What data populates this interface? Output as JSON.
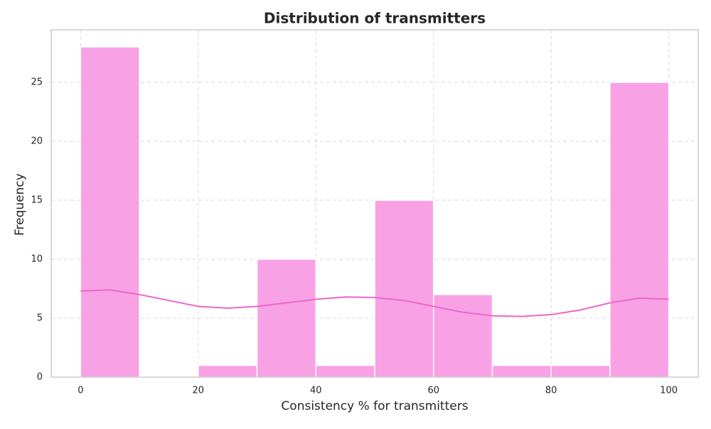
{
  "chart_data": {
    "type": "histogram",
    "title": "Distribution of transmitters",
    "xlabel": "Consistency % for transmitters",
    "ylabel": "Frequency",
    "bins": [
      0,
      10,
      20,
      30,
      40,
      50,
      60,
      70,
      80,
      90,
      100
    ],
    "counts": [
      28,
      0,
      1,
      10,
      1,
      15,
      7,
      1,
      1,
      25
    ],
    "color": "#f8a2e5",
    "kde": {
      "x": [
        0,
        5,
        10,
        15,
        20,
        25,
        30,
        35,
        40,
        45,
        50,
        55,
        60,
        65,
        70,
        75,
        80,
        85,
        90,
        95,
        100
      ],
      "values": [
        7.3,
        7.4,
        7.0,
        6.5,
        6.0,
        5.85,
        6.0,
        6.3,
        6.6,
        6.8,
        6.75,
        6.5,
        6.0,
        5.5,
        5.2,
        5.15,
        5.3,
        5.7,
        6.3,
        6.7,
        6.6
      ],
      "color": "#ee66cc"
    },
    "xlim": [
      -5,
      105
    ],
    "xticks": [
      0,
      20,
      40,
      60,
      80,
      100
    ],
    "ylim": [
      0,
      29.45
    ],
    "yticks": [
      0,
      5,
      10,
      15,
      20,
      25
    ],
    "grid": true
  }
}
